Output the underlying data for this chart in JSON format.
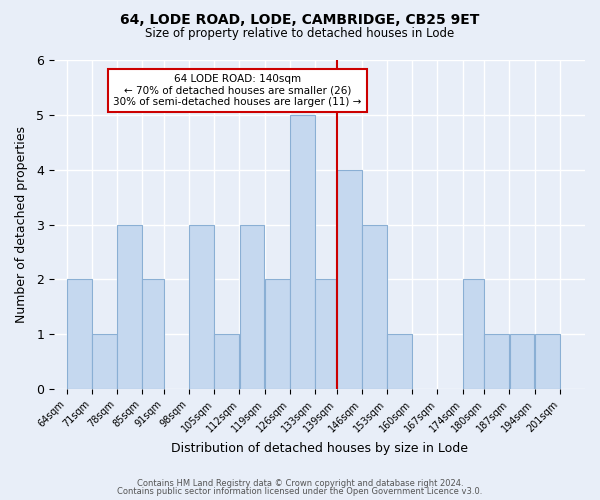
{
  "title": "64, LODE ROAD, LODE, CAMBRIDGE, CB25 9ET",
  "subtitle": "Size of property relative to detached houses in Lode",
  "xlabel": "Distribution of detached houses by size in Lode",
  "ylabel": "Number of detached properties",
  "bin_edges": [
    64,
    71,
    78,
    85,
    91,
    98,
    105,
    112,
    119,
    126,
    133,
    139,
    146,
    153,
    160,
    167,
    174,
    180,
    187,
    194,
    201,
    208
  ],
  "bin_labels": [
    "64sqm",
    "71sqm",
    "78sqm",
    "85sqm",
    "91sqm",
    "98sqm",
    "105sqm",
    "112sqm",
    "119sqm",
    "126sqm",
    "133sqm",
    "139sqm",
    "146sqm",
    "153sqm",
    "160sqm",
    "167sqm",
    "174sqm",
    "180sqm",
    "187sqm",
    "194sqm",
    "201sqm"
  ],
  "counts": [
    2,
    1,
    3,
    2,
    0,
    3,
    1,
    3,
    2,
    5,
    2,
    4,
    3,
    1,
    0,
    0,
    2,
    1,
    1,
    1,
    0
  ],
  "bar_color": "#c5d8ef",
  "bar_edge_color": "#8aafd4",
  "red_line_label_index": 11,
  "red_line_color": "#cc0000",
  "annotation_text_line1": "64 LODE ROAD: 140sqm",
  "annotation_text_line2": "← 70% of detached houses are smaller (26)",
  "annotation_text_line3": "30% of semi-detached houses are larger (11) →",
  "annotation_box_color": "#ffffff",
  "annotation_box_edge": "#cc0000",
  "ylim": [
    0,
    6
  ],
  "yticks": [
    0,
    1,
    2,
    3,
    4,
    5,
    6
  ],
  "background_color": "#e8eef8",
  "grid_color": "#ffffff",
  "footer_line1": "Contains HM Land Registry data © Crown copyright and database right 2024.",
  "footer_line2": "Contains public sector information licensed under the Open Government Licence v3.0."
}
